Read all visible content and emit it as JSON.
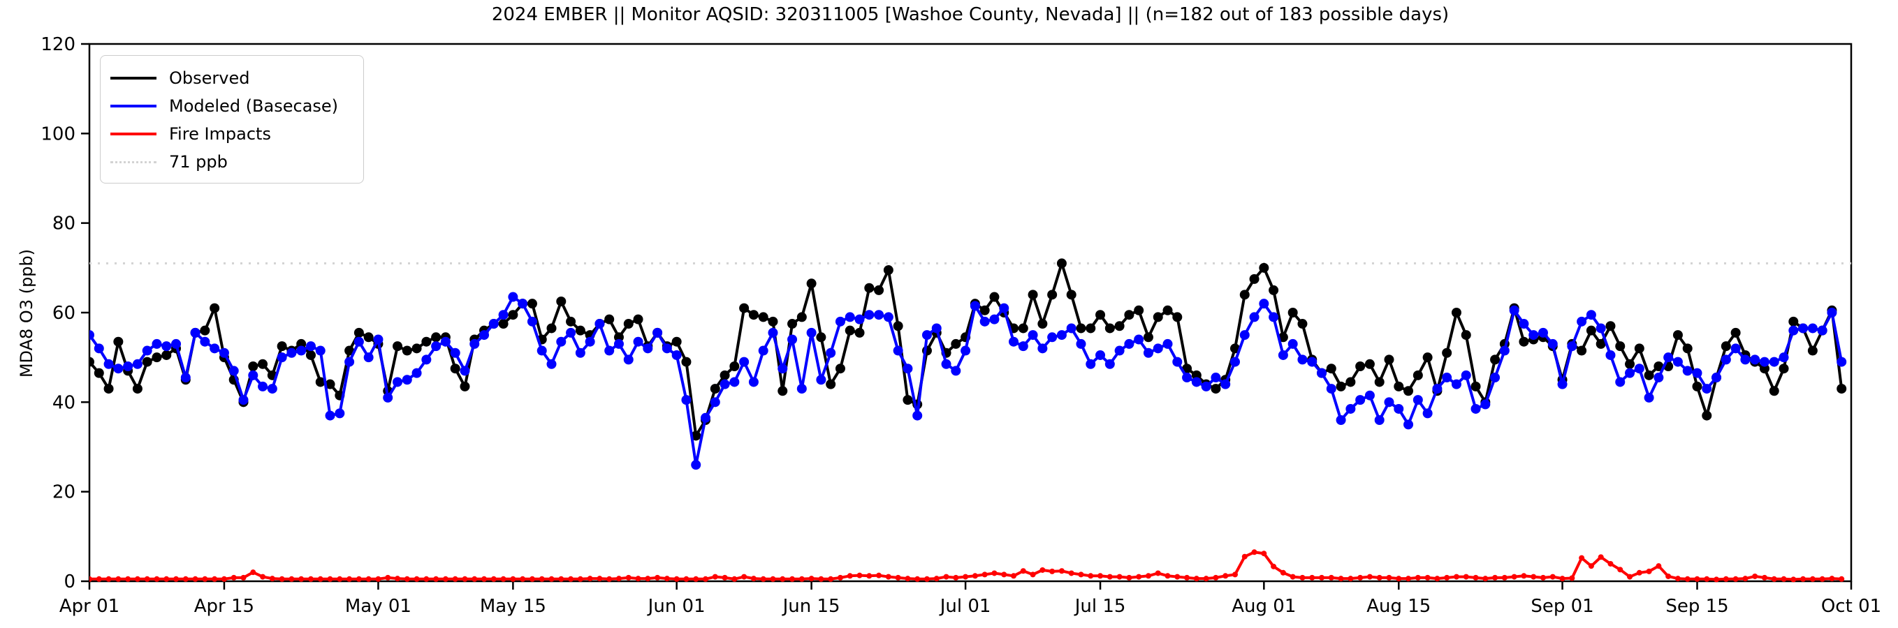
{
  "title": "2024 EMBER || Monitor AQSID: 320311005 [Washoe County, Nevada] || (n=182 out of 183 possible days)",
  "y_axis_label": "MDA8 O3 (ppb)",
  "monitor": {
    "year": "2024",
    "program": "EMBER",
    "aqsid": "320311005",
    "location": "Washoe County, Nevada",
    "days_observed": 182,
    "days_possible": 183
  },
  "chart_data": {
    "type": "line",
    "title": "2024 EMBER || Monitor AQSID: 320311005 [Washoe County, Nevada] || (n=182 out of 183 possible days)",
    "xlabel": "",
    "ylabel": "MDA8 O3 (ppb)",
    "ylim": [
      0,
      120
    ],
    "y_ticks": [
      0,
      20,
      40,
      60,
      80,
      100,
      120
    ],
    "x_total_days": 183,
    "x_note": "one point per day, day 0 = Apr 01 2024 through day 182 = Sep 30 2024",
    "x_ticks": [
      {
        "day": 0,
        "label": "Apr 01"
      },
      {
        "day": 14,
        "label": "Apr 15"
      },
      {
        "day": 30,
        "label": "May 01"
      },
      {
        "day": 44,
        "label": "May 15"
      },
      {
        "day": 61,
        "label": "Jun 01"
      },
      {
        "day": 75,
        "label": "Jun 15"
      },
      {
        "day": 91,
        "label": "Jul 01"
      },
      {
        "day": 105,
        "label": "Jul 15"
      },
      {
        "day": 122,
        "label": "Aug 01"
      },
      {
        "day": 136,
        "label": "Aug 15"
      },
      {
        "day": 153,
        "label": "Sep 01"
      },
      {
        "day": 167,
        "label": "Sep 15"
      },
      {
        "day": 183,
        "label": "Oct 01"
      }
    ],
    "grid": false,
    "legend_position": "upper left",
    "threshold": {
      "value": 71,
      "label": "71 ppb",
      "color": "#d3d3d3",
      "style": "dotted"
    },
    "series": [
      {
        "name": "Observed",
        "color": "#000000",
        "marker": "circle",
        "values": [
          49,
          46.5,
          43,
          53.5,
          47,
          43,
          49,
          50,
          50.5,
          52,
          45,
          55.5,
          56,
          61,
          50,
          45,
          40,
          48,
          48.5,
          46,
          52.5,
          51.5,
          53,
          50.5,
          44.5,
          44,
          41.5,
          51.5,
          55.5,
          54.5,
          53,
          42.5,
          52.5,
          51.5,
          52,
          53.5,
          54.5,
          54.5,
          47.5,
          43.5,
          54,
          56,
          57.5,
          57.5,
          59.5,
          62,
          62,
          54,
          56.5,
          62.5,
          58,
          56,
          55,
          57.5,
          58.5,
          54.5,
          57.5,
          58.5,
          52.5,
          55.5,
          52.5,
          53.5,
          49,
          32.5,
          36,
          43,
          46,
          48,
          61,
          59.5,
          59,
          58,
          42.5,
          57.5,
          59,
          66.5,
          54.5,
          44,
          47.5,
          56,
          55.5,
          65.5,
          65,
          69.5,
          57,
          40.5,
          39.5,
          51.5,
          55.5,
          51,
          53,
          54.5,
          62,
          60.5,
          63.5,
          60,
          56.5,
          56.5,
          64,
          57.5,
          64,
          71,
          64,
          56.5,
          56.5,
          59.5,
          56.5,
          57,
          59.5,
          60.5,
          54.5,
          59,
          60.5,
          59,
          47.5,
          46,
          44,
          43,
          45,
          52,
          64,
          67.5,
          70,
          65,
          54.5,
          60,
          57.5,
          49.5,
          46.5,
          47.5,
          43.5,
          44.5,
          48,
          48.5,
          44.5,
          49.5,
          43.5,
          42.5,
          46,
          50,
          42.5,
          51,
          60,
          55,
          43.5,
          40,
          49.5,
          53,
          61,
          53.5,
          54,
          54.5,
          52.5,
          45,
          53,
          51.5,
          56,
          53,
          57,
          52.5,
          48.5,
          52,
          46,
          48,
          48,
          55,
          52,
          43.5,
          37,
          45.5,
          52.5,
          55.5,
          50.5,
          49,
          47.5,
          42.5,
          47.5,
          58,
          56.5,
          51.5,
          56,
          60.5,
          43
        ]
      },
      {
        "name": "Modeled (Basecase)",
        "color": "#0000ff",
        "marker": "circle",
        "values": [
          55,
          52,
          48.5,
          47.5,
          48,
          48.5,
          51.5,
          53,
          52.5,
          53,
          45.5,
          55.5,
          53.5,
          52,
          51,
          47,
          40.5,
          46,
          43.5,
          43,
          50,
          51,
          51.5,
          52.5,
          51.5,
          37,
          37.5,
          49,
          53.5,
          50,
          54,
          41,
          44.5,
          45,
          46.5,
          49.5,
          52.5,
          53.5,
          51,
          47,
          53,
          55,
          57.5,
          59.5,
          63.5,
          62,
          58,
          51.5,
          48.5,
          53.5,
          55.5,
          51,
          53.5,
          57.5,
          51.5,
          53,
          49.5,
          53.5,
          52,
          55.5,
          52,
          50.5,
          40.5,
          26,
          36.5,
          40,
          44,
          44.5,
          49,
          44.5,
          51.5,
          55.5,
          47.5,
          54,
          43,
          55.5,
          45,
          51,
          58,
          59,
          58.5,
          59.5,
          59.5,
          59,
          51.5,
          47.5,
          37,
          55,
          56.5,
          48.5,
          47,
          51.5,
          61.5,
          58,
          58.5,
          61,
          53.5,
          52.5,
          55,
          52,
          54.5,
          55,
          56.5,
          53,
          48.5,
          50.5,
          48.5,
          51.5,
          53,
          54,
          51,
          52,
          53,
          49,
          45.5,
          44.5,
          43.5,
          45.5,
          44,
          49,
          55,
          59,
          62,
          59,
          50.5,
          53,
          49.5,
          49,
          46.5,
          43,
          36,
          38.5,
          40.5,
          41.5,
          36,
          40,
          38.5,
          35,
          40.5,
          37.5,
          43,
          45.5,
          44,
          46,
          38.5,
          39.5,
          45.5,
          51.5,
          60.5,
          57.5,
          55,
          55.5,
          53,
          44,
          52.5,
          58,
          59.5,
          56.5,
          50.5,
          44.5,
          46.5,
          47.5,
          41,
          45.5,
          50,
          49,
          47,
          46.5,
          43,
          45.5,
          49.5,
          52,
          49.5,
          49.5,
          49,
          49,
          50,
          56,
          56.5,
          56.5,
          56,
          60,
          49
        ]
      },
      {
        "name": "Fire Impacts",
        "color": "#ff0000",
        "marker": "circle",
        "values": [
          0.5,
          0.5,
          0.5,
          0.5,
          0.5,
          0.5,
          0.5,
          0.5,
          0.5,
          0.5,
          0.5,
          0.5,
          0.5,
          0.5,
          0.5,
          0.8,
          0.8,
          2,
          1,
          0.6,
          0.5,
          0.5,
          0.5,
          0.5,
          0.5,
          0.5,
          0.5,
          0.5,
          0.5,
          0.5,
          0.5,
          0.8,
          0.6,
          0.5,
          0.5,
          0.5,
          0.5,
          0.5,
          0.5,
          0.5,
          0.5,
          0.5,
          0.5,
          0.5,
          0.5,
          0.5,
          0.5,
          0.5,
          0.5,
          0.5,
          0.5,
          0.5,
          0.6,
          0.6,
          0.5,
          0.6,
          0.8,
          0.6,
          0.6,
          0.8,
          0.6,
          0.5,
          0.5,
          0.5,
          0.5,
          1,
          0.8,
          0.5,
          1,
          0.6,
          0.5,
          0.5,
          0.5,
          0.5,
          0.5,
          0.6,
          0.5,
          0.5,
          0.8,
          1.2,
          1.3,
          1.2,
          1.3,
          1,
          0.8,
          0.6,
          0.5,
          0.5,
          0.6,
          1,
          0.8,
          1,
          1.2,
          1.5,
          1.8,
          1.5,
          1.2,
          2.3,
          1.5,
          2.5,
          2.2,
          2.3,
          1.8,
          1.5,
          1.2,
          1.2,
          1,
          1,
          0.8,
          1,
          1.2,
          1.8,
          1.2,
          1,
          0.8,
          0.6,
          0.6,
          0.8,
          1.2,
          1.5,
          5.5,
          6.5,
          6.2,
          3.3,
          1.9,
          1,
          0.8,
          0.8,
          0.8,
          0.8,
          0.6,
          0.6,
          0.8,
          1,
          0.8,
          0.8,
          0.6,
          0.6,
          0.8,
          0.8,
          0.6,
          0.8,
          1,
          1,
          0.8,
          0.6,
          0.8,
          0.8,
          1,
          1.2,
          1,
          0.8,
          1,
          0.6,
          0.7,
          5.2,
          3.4,
          5.4,
          3.9,
          2.6,
          1,
          1.9,
          2.2,
          3.4,
          1.1,
          0.6,
          0.5,
          0.5,
          0.5,
          0.4,
          0.5,
          0.5,
          0.6,
          1.1,
          0.8,
          0.5,
          0.5,
          0.4,
          0.5,
          0.5,
          0.5,
          0.6,
          0.5
        ]
      }
    ]
  },
  "layout_colors": {
    "background": "#ffffff",
    "axis": "#000000",
    "threshold_line": "#d3d3d3",
    "legend_border": "#cccccc"
  }
}
